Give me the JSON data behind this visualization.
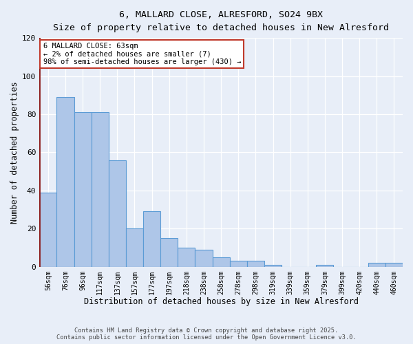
{
  "title_line1": "6, MALLARD CLOSE, ALRESFORD, SO24 9BX",
  "title_line2": "Size of property relative to detached houses in New Alresford",
  "xlabel": "Distribution of detached houses by size in New Alresford",
  "ylabel": "Number of detached properties",
  "categories": [
    "56sqm",
    "76sqm",
    "96sqm",
    "117sqm",
    "137sqm",
    "157sqm",
    "177sqm",
    "197sqm",
    "218sqm",
    "238sqm",
    "258sqm",
    "278sqm",
    "298sqm",
    "319sqm",
    "339sqm",
    "359sqm",
    "379sqm",
    "399sqm",
    "420sqm",
    "440sqm",
    "460sqm"
  ],
  "values": [
    39,
    89,
    81,
    81,
    56,
    20,
    29,
    15,
    10,
    9,
    5,
    3,
    3,
    1,
    0,
    0,
    1,
    0,
    0,
    2,
    2
  ],
  "bar_color": "#aec6e8",
  "bar_edge_color": "#5b9bd5",
  "marker_color": "#8b1a1a",
  "ylim": [
    0,
    120
  ],
  "yticks": [
    0,
    20,
    40,
    60,
    80,
    100,
    120
  ],
  "annotation_text": "6 MALLARD CLOSE: 63sqm\n← 2% of detached houses are smaller (7)\n98% of semi-detached houses are larger (430) →",
  "annotation_box_color": "#ffffff",
  "annotation_box_edge_color": "#c0392b",
  "footer_line1": "Contains HM Land Registry data © Crown copyright and database right 2025.",
  "footer_line2": "Contains public sector information licensed under the Open Government Licence v3.0.",
  "bg_color": "#e8eef8",
  "plot_bg_color": "#e8eef8"
}
